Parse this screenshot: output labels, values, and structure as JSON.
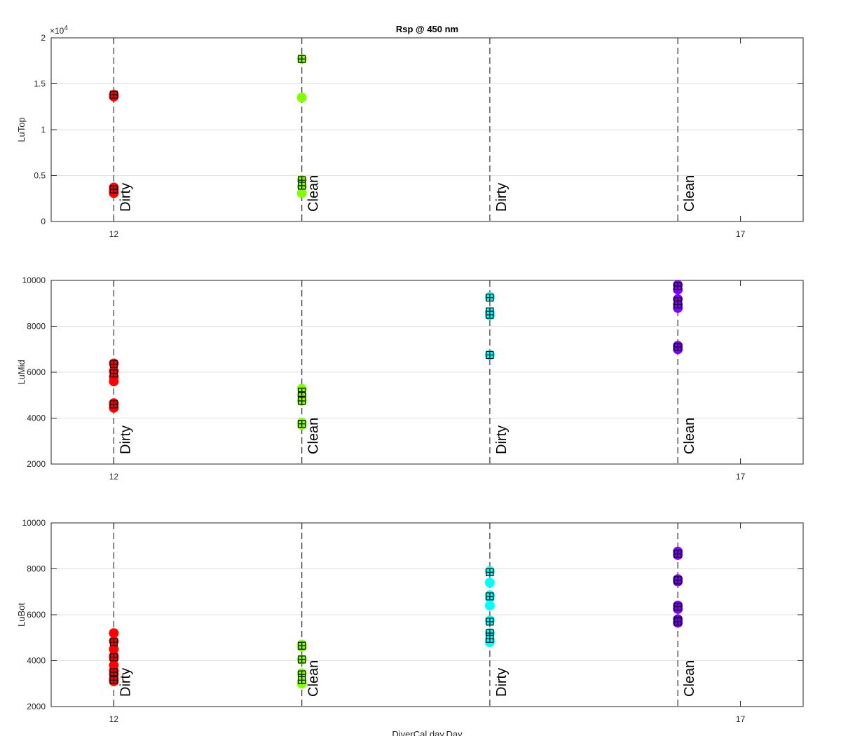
{
  "chart_data": [
    {
      "type": "scatter",
      "title": "Rsp @ 450 nm",
      "ylabel": "LuTop",
      "xlabel": "",
      "xlim": [
        11.5,
        17.5
      ],
      "ylim": [
        0,
        20000
      ],
      "yticks": [
        0,
        0.5,
        1,
        1.5,
        2
      ],
      "ytick_labels": [
        "0",
        "0.5",
        "1",
        "1.5",
        "2"
      ],
      "y_exponent_label": "×10",
      "y_exponent_power": "4",
      "xticks": [
        12,
        17
      ],
      "xtick_labels": [
        "12",
        "17"
      ],
      "grid": "horizontal",
      "vlines": [
        {
          "x": 12,
          "label": "Dirty"
        },
        {
          "x": 13.5,
          "label": "Clean"
        },
        {
          "x": 15,
          "label": "Dirty"
        },
        {
          "x": 16.5,
          "label": "Clean"
        }
      ],
      "series": [
        {
          "color": "#ff0000",
          "marker": "circle",
          "x": [
            12,
            12,
            12,
            12,
            12
          ],
          "values": [
            13800,
            13600,
            3700,
            3400,
            3100
          ]
        },
        {
          "color": "#ff0000",
          "marker": "square",
          "x": [
            12,
            12
          ],
          "values": [
            13800,
            3500
          ]
        },
        {
          "color": "#7fff00",
          "marker": "circle",
          "x": [
            13.5,
            13.5,
            13.5,
            13.5,
            13.5
          ],
          "values": [
            17700,
            13500,
            4500,
            3800,
            3100
          ]
        },
        {
          "color": "#7fff00",
          "marker": "square",
          "x": [
            13.5,
            13.5,
            13.5
          ],
          "values": [
            17700,
            4500,
            3900
          ]
        }
      ]
    },
    {
      "type": "scatter",
      "ylabel": "LuMid",
      "xlabel": "",
      "xlim": [
        11.5,
        17.5
      ],
      "ylim": [
        2000,
        10000
      ],
      "yticks": [
        2000,
        4000,
        6000,
        8000,
        10000
      ],
      "ytick_labels": [
        "2000",
        "4000",
        "6000",
        "8000",
        "10000"
      ],
      "xticks": [
        12,
        17
      ],
      "xtick_labels": [
        "12",
        "17"
      ],
      "grid": "horizontal",
      "vlines": [
        {
          "x": 12,
          "label": "Dirty"
        },
        {
          "x": 13.5,
          "label": "Clean"
        },
        {
          "x": 15,
          "label": "Dirty"
        },
        {
          "x": 16.5,
          "label": "Clean"
        }
      ],
      "series": [
        {
          "color": "#ff0000",
          "marker": "circle",
          "x": [
            12,
            12,
            12,
            12,
            12,
            12,
            12
          ],
          "values": [
            6380,
            6050,
            5800,
            5600,
            4650,
            4450,
            4600
          ]
        },
        {
          "color": "#ff0000",
          "marker": "square",
          "x": [
            12,
            12,
            12
          ],
          "values": [
            6350,
            5950,
            4600
          ]
        },
        {
          "color": "#7fff00",
          "marker": "circle",
          "x": [
            13.5,
            13.5,
            13.5,
            13.5,
            13.5
          ],
          "values": [
            5280,
            5000,
            4750,
            3800,
            3700
          ]
        },
        {
          "color": "#7fff00",
          "marker": "square",
          "x": [
            13.5,
            13.5,
            13.5,
            13.5
          ],
          "values": [
            5150,
            4950,
            4750,
            3750
          ]
        },
        {
          "color": "#00ffff",
          "marker": "circle",
          "x": [
            15,
            15,
            15,
            15
          ],
          "values": [
            9280,
            8600,
            8480,
            6750
          ]
        },
        {
          "color": "#00ffff",
          "marker": "square",
          "x": [
            15,
            15,
            15,
            15
          ],
          "values": [
            9250,
            8650,
            8500,
            6750
          ]
        },
        {
          "color": "#7f00ff",
          "marker": "circle",
          "x": [
            16.5,
            16.5,
            16.5,
            16.5,
            16.5,
            16.5,
            16.5
          ],
          "values": [
            9800,
            9600,
            9180,
            8950,
            8800,
            7150,
            7000
          ]
        },
        {
          "color": "#7f00ff",
          "marker": "square",
          "x": [
            16.5,
            16.5,
            16.5,
            16.5
          ],
          "values": [
            9750,
            9100,
            8950,
            7100
          ]
        }
      ]
    },
    {
      "type": "scatter",
      "ylabel": "LuBot",
      "xlabel": "DiverCal.day.Day",
      "xlim": [
        11.5,
        17.5
      ],
      "ylim": [
        2000,
        10000
      ],
      "yticks": [
        2000,
        4000,
        6000,
        8000,
        10000
      ],
      "ytick_labels": [
        "2000",
        "4000",
        "6000",
        "8000",
        "10000"
      ],
      "xticks": [
        12,
        17
      ],
      "xtick_labels": [
        "12",
        "17"
      ],
      "grid": "horizontal",
      "vlines": [
        {
          "x": 12,
          "label": "Dirty"
        },
        {
          "x": 13.5,
          "label": "Clean"
        },
        {
          "x": 15,
          "label": "Dirty"
        },
        {
          "x": 16.5,
          "label": "Clean"
        }
      ],
      "series": [
        {
          "color": "#ff0000",
          "marker": "circle",
          "x": [
            12,
            12,
            12,
            12,
            12,
            12,
            12,
            12,
            12,
            12
          ],
          "values": [
            5200,
            4850,
            4500,
            4200,
            4100,
            3800,
            3550,
            3400,
            3200,
            3100
          ]
        },
        {
          "color": "#ff0000",
          "marker": "square",
          "x": [
            12,
            12,
            12,
            12,
            12
          ],
          "values": [
            4800,
            4150,
            3500,
            3200,
            3150
          ]
        },
        {
          "color": "#7fff00",
          "marker": "circle",
          "x": [
            13.5,
            13.5,
            13.5,
            13.5,
            13.5,
            13.5
          ],
          "values": [
            4700,
            4600,
            4050,
            3450,
            3100,
            3000
          ]
        },
        {
          "color": "#7fff00",
          "marker": "square",
          "x": [
            13.5,
            13.5,
            13.5,
            13.5
          ],
          "values": [
            4650,
            4050,
            3400,
            3150
          ]
        },
        {
          "color": "#00ffff",
          "marker": "circle",
          "x": [
            15,
            15,
            15,
            15,
            15,
            15,
            15,
            15,
            15
          ],
          "values": [
            7900,
            7400,
            6850,
            6750,
            6400,
            5750,
            5200,
            4900,
            4800
          ]
        },
        {
          "color": "#00ffff",
          "marker": "square",
          "x": [
            15,
            15,
            15,
            15,
            15
          ],
          "values": [
            7850,
            6800,
            5700,
            5200,
            4950
          ]
        },
        {
          "color": "#7f00ff",
          "marker": "circle",
          "x": [
            16.5,
            16.5,
            16.5,
            16.5,
            16.5,
            16.5,
            16.5,
            16.5
          ],
          "values": [
            8750,
            8600,
            7550,
            7450,
            6400,
            6250,
            5800,
            5650
          ]
        },
        {
          "color": "#7f00ff",
          "marker": "square",
          "x": [
            16.5,
            16.5,
            16.5,
            16.5,
            16.5
          ],
          "values": [
            8650,
            7500,
            6350,
            5750,
            5700
          ]
        }
      ]
    }
  ]
}
